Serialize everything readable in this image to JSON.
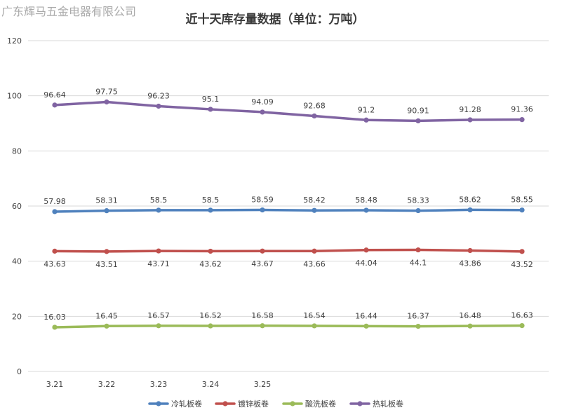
{
  "watermark": "广东辉马五金电器有限公司",
  "chart_data": {
    "type": "line",
    "title": "近十天库存量数据（单位：万吨）",
    "xlabel": "",
    "ylabel": "",
    "ylim": [
      0,
      120
    ],
    "yticks": [
      0,
      20,
      40,
      60,
      80,
      100,
      120
    ],
    "grid": true,
    "legend": "bottom",
    "categories": [
      "3.21",
      "3.22",
      "3.23",
      "3.24",
      "3.25",
      "",
      "",
      "",
      "",
      ""
    ],
    "series": [
      {
        "name": "冷轧板卷",
        "color": "#4f81bd",
        "label_pos": "above",
        "values": [
          57.98,
          58.31,
          58.5,
          58.5,
          58.59,
          58.42,
          58.48,
          58.33,
          58.62,
          58.55
        ]
      },
      {
        "name": "镀锌板卷",
        "color": "#c0504d",
        "label_pos": "below",
        "values": [
          43.63,
          43.51,
          43.71,
          43.62,
          43.67,
          43.66,
          44.04,
          44.1,
          43.86,
          43.52
        ]
      },
      {
        "name": "酸洗板卷",
        "color": "#9bbb59",
        "label_pos": "above",
        "values": [
          16.03,
          16.45,
          16.57,
          16.52,
          16.58,
          16.54,
          16.44,
          16.37,
          16.48,
          16.63
        ]
      },
      {
        "name": "热轧板卷",
        "color": "#8064a2",
        "label_pos": "above",
        "values": [
          96.64,
          97.75,
          96.23,
          95.1,
          94.09,
          92.68,
          91.2,
          90.91,
          91.28,
          91.36
        ]
      }
    ]
  }
}
